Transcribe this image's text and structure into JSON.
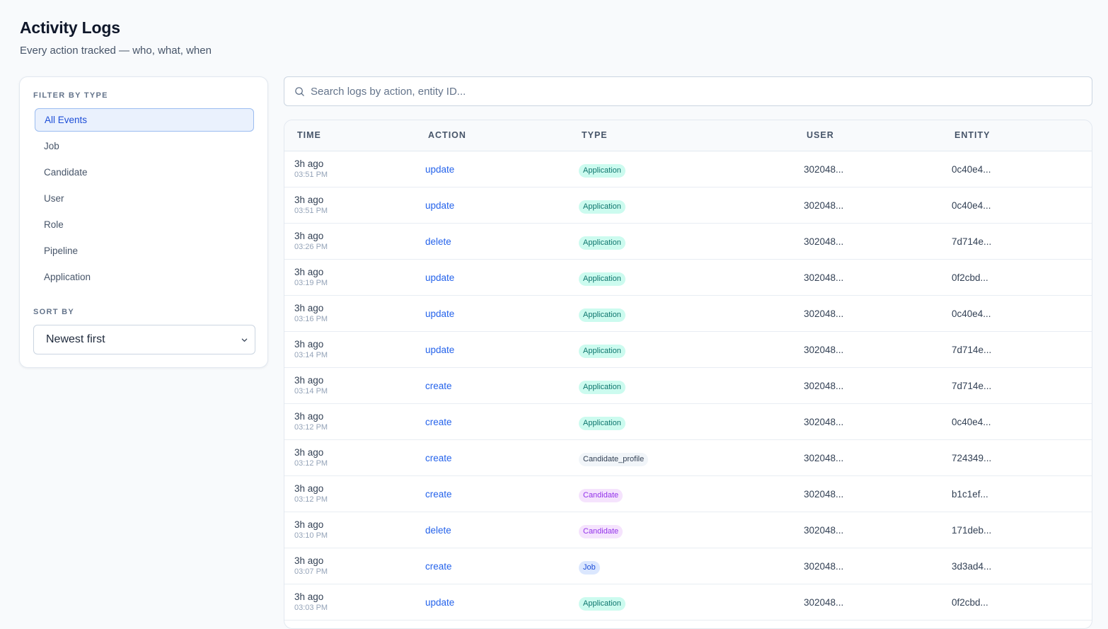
{
  "header": {
    "title": "Activity Logs",
    "subtitle": "Every action tracked — who, what, when"
  },
  "sidebar": {
    "filter_label": "FILTER BY TYPE",
    "filters": [
      {
        "label": "All Events",
        "active": true
      },
      {
        "label": "Job",
        "active": false
      },
      {
        "label": "Candidate",
        "active": false
      },
      {
        "label": "User",
        "active": false
      },
      {
        "label": "Role",
        "active": false
      },
      {
        "label": "Pipeline",
        "active": false
      },
      {
        "label": "Application",
        "active": false
      }
    ],
    "sort_label": "SORT BY",
    "sort_value": "Newest first"
  },
  "search": {
    "placeholder": "Search logs by action, entity ID...",
    "value": ""
  },
  "table": {
    "columns": [
      "TIME",
      "ACTION",
      "TYPE",
      "USER",
      "ENTITY"
    ],
    "rows": [
      {
        "rel": "3h ago",
        "abs": "03:51 PM",
        "action": "update",
        "type": "Application",
        "user": "302048...",
        "entity": "0c40e4..."
      },
      {
        "rel": "3h ago",
        "abs": "03:51 PM",
        "action": "update",
        "type": "Application",
        "user": "302048...",
        "entity": "0c40e4..."
      },
      {
        "rel": "3h ago",
        "abs": "03:26 PM",
        "action": "delete",
        "type": "Application",
        "user": "302048...",
        "entity": "7d714e..."
      },
      {
        "rel": "3h ago",
        "abs": "03:19 PM",
        "action": "update",
        "type": "Application",
        "user": "302048...",
        "entity": "0f2cbd..."
      },
      {
        "rel": "3h ago",
        "abs": "03:16 PM",
        "action": "update",
        "type": "Application",
        "user": "302048...",
        "entity": "0c40e4..."
      },
      {
        "rel": "3h ago",
        "abs": "03:14 PM",
        "action": "update",
        "type": "Application",
        "user": "302048...",
        "entity": "7d714e..."
      },
      {
        "rel": "3h ago",
        "abs": "03:14 PM",
        "action": "create",
        "type": "Application",
        "user": "302048...",
        "entity": "7d714e..."
      },
      {
        "rel": "3h ago",
        "abs": "03:12 PM",
        "action": "create",
        "type": "Application",
        "user": "302048...",
        "entity": "0c40e4..."
      },
      {
        "rel": "3h ago",
        "abs": "03:12 PM",
        "action": "create",
        "type": "Candidate_profile",
        "user": "302048...",
        "entity": "724349..."
      },
      {
        "rel": "3h ago",
        "abs": "03:12 PM",
        "action": "create",
        "type": "Candidate",
        "user": "302048...",
        "entity": "b1c1ef..."
      },
      {
        "rel": "3h ago",
        "abs": "03:10 PM",
        "action": "delete",
        "type": "Candidate",
        "user": "302048...",
        "entity": "171deb..."
      },
      {
        "rel": "3h ago",
        "abs": "03:07 PM",
        "action": "create",
        "type": "Job",
        "user": "302048...",
        "entity": "3d3ad4..."
      },
      {
        "rel": "3h ago",
        "abs": "03:03 PM",
        "action": "update",
        "type": "Application",
        "user": "302048...",
        "entity": "0f2cbd..."
      }
    ]
  },
  "icons": {
    "search": "search-icon",
    "sort_chevron": "chevron-down-icon"
  },
  "colors": {
    "accent": "#2563eb",
    "application_badge": "#ccfbef",
    "candidate_badge": "#f5e3fd",
    "job_badge": "#dbe7fe",
    "candidate_profile_badge": "#f1f5f9"
  }
}
